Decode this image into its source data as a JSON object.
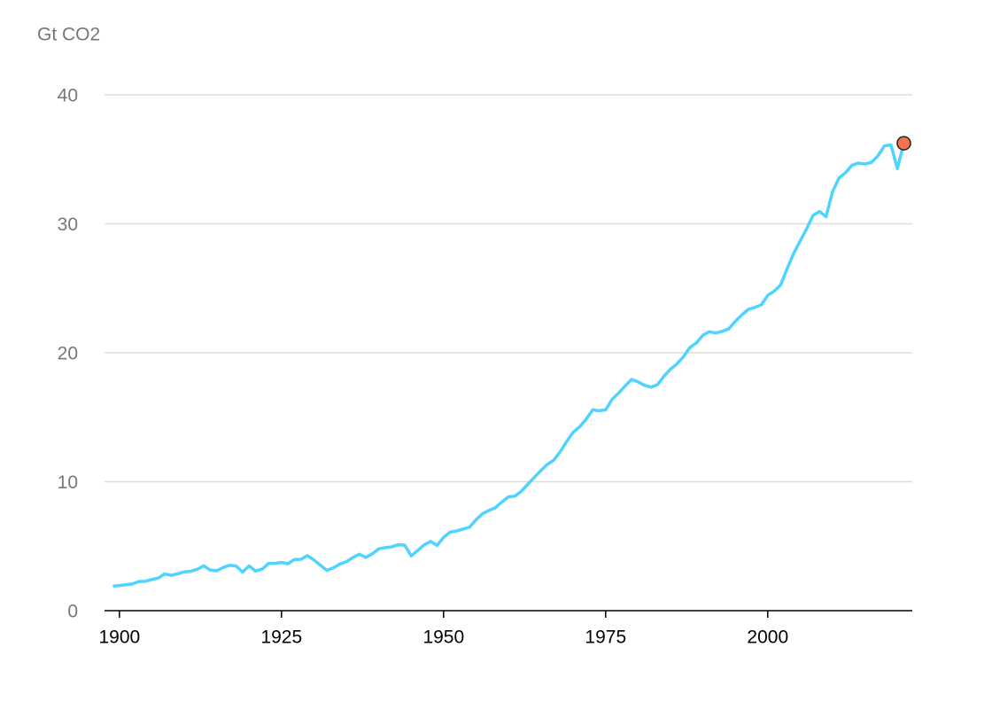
{
  "chart_data": {
    "type": "line",
    "y_axis_label": "Gt CO2",
    "x": [
      1899,
      1900,
      1901,
      1902,
      1903,
      1904,
      1905,
      1906,
      1907,
      1908,
      1909,
      1910,
      1911,
      1912,
      1913,
      1914,
      1915,
      1916,
      1917,
      1918,
      1919,
      1920,
      1921,
      1922,
      1923,
      1924,
      1925,
      1926,
      1927,
      1928,
      1929,
      1930,
      1931,
      1932,
      1933,
      1934,
      1935,
      1936,
      1937,
      1938,
      1939,
      1940,
      1941,
      1942,
      1943,
      1944,
      1945,
      1946,
      1947,
      1948,
      1949,
      1950,
      1951,
      1952,
      1953,
      1954,
      1955,
      1956,
      1957,
      1958,
      1959,
      1960,
      1961,
      1962,
      1963,
      1964,
      1965,
      1966,
      1967,
      1968,
      1969,
      1970,
      1971,
      1972,
      1973,
      1974,
      1975,
      1976,
      1977,
      1978,
      1979,
      1980,
      1981,
      1982,
      1983,
      1984,
      1985,
      1986,
      1987,
      1988,
      1989,
      1990,
      1991,
      1992,
      1993,
      1994,
      1995,
      1996,
      1997,
      1998,
      1999,
      2000,
      2001,
      2002,
      2003,
      2004,
      2005,
      2006,
      2007,
      2008,
      2009,
      2010,
      2011,
      2012,
      2013,
      2014,
      2015,
      2016,
      2017,
      2018,
      2019,
      2020,
      2021
    ],
    "series": [
      {
        "color": "#4fd3ff",
        "highlight_color": "#f2734d",
        "values": [
          1.9,
          1.95,
          2.01,
          2.07,
          2.26,
          2.28,
          2.42,
          2.53,
          2.85,
          2.74,
          2.86,
          3.01,
          3.05,
          3.21,
          3.48,
          3.15,
          3.09,
          3.35,
          3.52,
          3.46,
          2.99,
          3.47,
          3.07,
          3.22,
          3.66,
          3.67,
          3.74,
          3.64,
          3.97,
          3.98,
          4.27,
          3.93,
          3.52,
          3.13,
          3.32,
          3.62,
          3.79,
          4.12,
          4.38,
          4.13,
          4.41,
          4.79,
          4.89,
          4.95,
          5.11,
          5.08,
          4.25,
          4.66,
          5.1,
          5.37,
          5.06,
          5.68,
          6.09,
          6.18,
          6.33,
          6.47,
          7.05,
          7.51,
          7.77,
          7.99,
          8.43,
          8.82,
          8.88,
          9.26,
          9.81,
          10.34,
          10.86,
          11.34,
          11.67,
          12.33,
          13.13,
          13.84,
          14.26,
          14.85,
          15.57,
          15.51,
          15.57,
          16.39,
          16.87,
          17.42,
          17.94,
          17.74,
          17.48,
          17.33,
          17.53,
          18.18,
          18.72,
          19.14,
          19.69,
          20.41,
          20.76,
          21.36,
          21.63,
          21.53,
          21.66,
          21.86,
          22.43,
          22.93,
          23.36,
          23.51,
          23.71,
          24.45,
          24.78,
          25.27,
          26.52,
          27.7,
          28.66,
          29.61,
          30.65,
          30.95,
          30.55,
          32.49,
          33.55,
          33.96,
          34.54,
          34.71,
          34.64,
          34.76,
          35.27,
          36.04,
          36.12,
          34.28,
          36.25
        ]
      }
    ],
    "xlim": [
      1897.7,
      2022.3
    ],
    "xticks": [
      1900,
      1925,
      1950,
      1975,
      2000
    ],
    "ylim": [
      0,
      40
    ],
    "yticks": [
      0,
      10,
      20,
      30,
      40
    ],
    "grid": true
  }
}
